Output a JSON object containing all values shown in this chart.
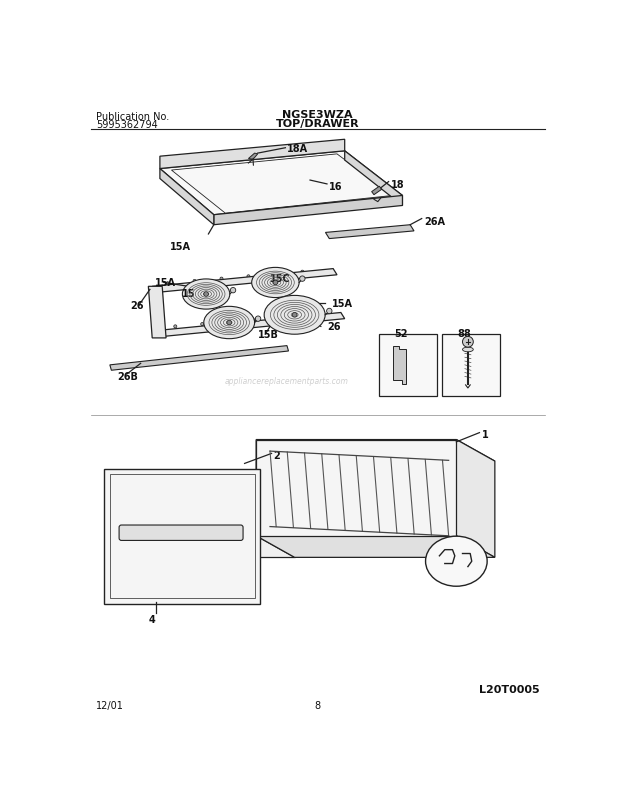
{
  "bg_color": "#ffffff",
  "title_model": "NGSE3WZA",
  "title_section": "TOP/DRAWER",
  "pub_no_label": "Publication No.",
  "pub_no": "5995362794",
  "bottom_left": "12/01",
  "bottom_center": "8",
  "bottom_right": "L20T0005",
  "line_color": "#222222",
  "lw": 0.9
}
